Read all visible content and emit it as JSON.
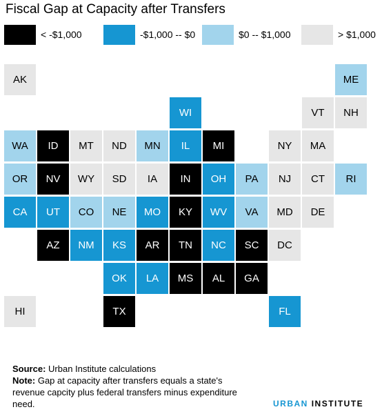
{
  "title": "Fiscal Gap at Capacity after Transfers",
  "legend": [
    {
      "label": "< -$1,000",
      "color": "#000000"
    },
    {
      "label": "-$1,000 -- $0",
      "color": "#1696d2"
    },
    {
      "label": "$0 -- $1,000",
      "color": "#a2d4ec"
    },
    {
      "label": "> $1,000",
      "color": "#e6e6e6"
    }
  ],
  "states": [
    {
      "abbr": "AK",
      "bin": 3
    },
    {
      "abbr": "ME",
      "bin": 2
    },
    {
      "abbr": "WI",
      "bin": 1
    },
    {
      "abbr": "VT",
      "bin": 3
    },
    {
      "abbr": "NH",
      "bin": 3
    },
    {
      "abbr": "WA",
      "bin": 2
    },
    {
      "abbr": "ID",
      "bin": 0
    },
    {
      "abbr": "MT",
      "bin": 3
    },
    {
      "abbr": "ND",
      "bin": 3
    },
    {
      "abbr": "MN",
      "bin": 2
    },
    {
      "abbr": "IL",
      "bin": 1
    },
    {
      "abbr": "MI",
      "bin": 0
    },
    {
      "abbr": "NY",
      "bin": 3
    },
    {
      "abbr": "MA",
      "bin": 3
    },
    {
      "abbr": "OR",
      "bin": 2
    },
    {
      "abbr": "NV",
      "bin": 0
    },
    {
      "abbr": "WY",
      "bin": 3
    },
    {
      "abbr": "SD",
      "bin": 3
    },
    {
      "abbr": "IA",
      "bin": 3
    },
    {
      "abbr": "IN",
      "bin": 0
    },
    {
      "abbr": "OH",
      "bin": 1
    },
    {
      "abbr": "PA",
      "bin": 2
    },
    {
      "abbr": "NJ",
      "bin": 3
    },
    {
      "abbr": "CT",
      "bin": 3
    },
    {
      "abbr": "RI",
      "bin": 2
    },
    {
      "abbr": "CA",
      "bin": 1
    },
    {
      "abbr": "UT",
      "bin": 1
    },
    {
      "abbr": "CO",
      "bin": 2
    },
    {
      "abbr": "NE",
      "bin": 2
    },
    {
      "abbr": "MO",
      "bin": 1
    },
    {
      "abbr": "KY",
      "bin": 0
    },
    {
      "abbr": "WV",
      "bin": 1
    },
    {
      "abbr": "VA",
      "bin": 2
    },
    {
      "abbr": "MD",
      "bin": 3
    },
    {
      "abbr": "DE",
      "bin": 3
    },
    {
      "abbr": "AZ",
      "bin": 0
    },
    {
      "abbr": "NM",
      "bin": 1
    },
    {
      "abbr": "KS",
      "bin": 1
    },
    {
      "abbr": "AR",
      "bin": 0
    },
    {
      "abbr": "TN",
      "bin": 0
    },
    {
      "abbr": "NC",
      "bin": 1
    },
    {
      "abbr": "SC",
      "bin": 0
    },
    {
      "abbr": "DC",
      "bin": 3
    },
    {
      "abbr": "OK",
      "bin": 1
    },
    {
      "abbr": "LA",
      "bin": 1
    },
    {
      "abbr": "MS",
      "bin": 0
    },
    {
      "abbr": "AL",
      "bin": 0
    },
    {
      "abbr": "GA",
      "bin": 0
    },
    {
      "abbr": "HI",
      "bin": 3
    },
    {
      "abbr": "TX",
      "bin": 0
    },
    {
      "abbr": "FL",
      "bin": 1
    }
  ],
  "footer": {
    "source_label": "Source:",
    "source_text": " Urban Institute calculations",
    "note_label": "Note:",
    "note_text": " Gap at capacity after transfers equals a state's revenue capcity plus federal transfers minus expenditure need."
  },
  "logo": {
    "part1": "URBAN",
    "part2": "INSTITUTE"
  }
}
